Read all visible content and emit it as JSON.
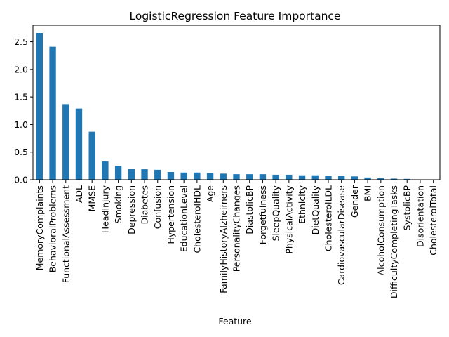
{
  "chart_data": {
    "type": "bar",
    "title": "LogisticRegression Feature Importance",
    "xlabel": "Feature",
    "ylabel": "",
    "ylim": [
      0,
      2.8
    ],
    "yticks": [
      "0.0",
      "0.5",
      "1.0",
      "1.5",
      "2.0",
      "2.5"
    ],
    "grid": false,
    "legend": "none",
    "bar_color": "#1f77b4",
    "categories": [
      "MemoryComplaints",
      "BehavioralProblems",
      "FunctionalAssessment",
      "ADL",
      "MMSE",
      "HeadInjury",
      "Smoking",
      "Depression",
      "Diabetes",
      "Confusion",
      "Hypertension",
      "EducationLevel",
      "CholesterolHDL",
      "Age",
      "FamilyHistoryAlzheimers",
      "PersonalityChanges",
      "DiastolicBP",
      "Forgetfulness",
      "SleepQuality",
      "PhysicalActivity",
      "Ethnicity",
      "DietQuality",
      "CholesterolLDL",
      "CardiovascularDisease",
      "Gender",
      "BMI",
      "AlcoholConsumption",
      "DifficultyCompletingTasks",
      "SystolicBP",
      "Disorientation",
      "CholesterolTotal"
    ],
    "values": [
      2.66,
      2.41,
      1.37,
      1.29,
      0.87,
      0.33,
      0.25,
      0.2,
      0.19,
      0.18,
      0.14,
      0.13,
      0.13,
      0.12,
      0.11,
      0.1,
      0.1,
      0.1,
      0.09,
      0.09,
      0.08,
      0.08,
      0.07,
      0.07,
      0.06,
      0.04,
      0.03,
      0.02,
      0.015,
      0.005,
      0.003
    ]
  }
}
